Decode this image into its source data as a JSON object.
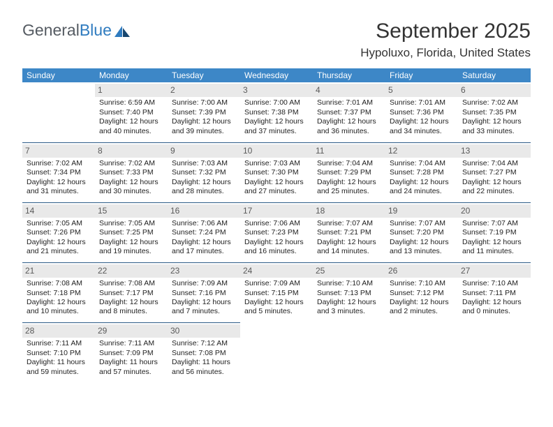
{
  "logo": {
    "text1": "General",
    "text2": "Blue"
  },
  "title": "September 2025",
  "location": "Hypoluxo, Florida, United States",
  "row_border_color": "#2b5a86",
  "header_bg": "#3d87c7",
  "daynum_bg": "#e9e9e9",
  "weekdays": [
    "Sunday",
    "Monday",
    "Tuesday",
    "Wednesday",
    "Thursday",
    "Friday",
    "Saturday"
  ],
  "weeks": [
    [
      null,
      {
        "d": "1",
        "r": "Sunrise: 6:59 AM",
        "s": "Sunset: 7:40 PM",
        "l1": "Daylight: 12 hours",
        "l2": "and 40 minutes."
      },
      {
        "d": "2",
        "r": "Sunrise: 7:00 AM",
        "s": "Sunset: 7:39 PM",
        "l1": "Daylight: 12 hours",
        "l2": "and 39 minutes."
      },
      {
        "d": "3",
        "r": "Sunrise: 7:00 AM",
        "s": "Sunset: 7:38 PM",
        "l1": "Daylight: 12 hours",
        "l2": "and 37 minutes."
      },
      {
        "d": "4",
        "r": "Sunrise: 7:01 AM",
        "s": "Sunset: 7:37 PM",
        "l1": "Daylight: 12 hours",
        "l2": "and 36 minutes."
      },
      {
        "d": "5",
        "r": "Sunrise: 7:01 AM",
        "s": "Sunset: 7:36 PM",
        "l1": "Daylight: 12 hours",
        "l2": "and 34 minutes."
      },
      {
        "d": "6",
        "r": "Sunrise: 7:02 AM",
        "s": "Sunset: 7:35 PM",
        "l1": "Daylight: 12 hours",
        "l2": "and 33 minutes."
      }
    ],
    [
      {
        "d": "7",
        "r": "Sunrise: 7:02 AM",
        "s": "Sunset: 7:34 PM",
        "l1": "Daylight: 12 hours",
        "l2": "and 31 minutes."
      },
      {
        "d": "8",
        "r": "Sunrise: 7:02 AM",
        "s": "Sunset: 7:33 PM",
        "l1": "Daylight: 12 hours",
        "l2": "and 30 minutes."
      },
      {
        "d": "9",
        "r": "Sunrise: 7:03 AM",
        "s": "Sunset: 7:32 PM",
        "l1": "Daylight: 12 hours",
        "l2": "and 28 minutes."
      },
      {
        "d": "10",
        "r": "Sunrise: 7:03 AM",
        "s": "Sunset: 7:30 PM",
        "l1": "Daylight: 12 hours",
        "l2": "and 27 minutes."
      },
      {
        "d": "11",
        "r": "Sunrise: 7:04 AM",
        "s": "Sunset: 7:29 PM",
        "l1": "Daylight: 12 hours",
        "l2": "and 25 minutes."
      },
      {
        "d": "12",
        "r": "Sunrise: 7:04 AM",
        "s": "Sunset: 7:28 PM",
        "l1": "Daylight: 12 hours",
        "l2": "and 24 minutes."
      },
      {
        "d": "13",
        "r": "Sunrise: 7:04 AM",
        "s": "Sunset: 7:27 PM",
        "l1": "Daylight: 12 hours",
        "l2": "and 22 minutes."
      }
    ],
    [
      {
        "d": "14",
        "r": "Sunrise: 7:05 AM",
        "s": "Sunset: 7:26 PM",
        "l1": "Daylight: 12 hours",
        "l2": "and 21 minutes."
      },
      {
        "d": "15",
        "r": "Sunrise: 7:05 AM",
        "s": "Sunset: 7:25 PM",
        "l1": "Daylight: 12 hours",
        "l2": "and 19 minutes."
      },
      {
        "d": "16",
        "r": "Sunrise: 7:06 AM",
        "s": "Sunset: 7:24 PM",
        "l1": "Daylight: 12 hours",
        "l2": "and 17 minutes."
      },
      {
        "d": "17",
        "r": "Sunrise: 7:06 AM",
        "s": "Sunset: 7:23 PM",
        "l1": "Daylight: 12 hours",
        "l2": "and 16 minutes."
      },
      {
        "d": "18",
        "r": "Sunrise: 7:07 AM",
        "s": "Sunset: 7:21 PM",
        "l1": "Daylight: 12 hours",
        "l2": "and 14 minutes."
      },
      {
        "d": "19",
        "r": "Sunrise: 7:07 AM",
        "s": "Sunset: 7:20 PM",
        "l1": "Daylight: 12 hours",
        "l2": "and 13 minutes."
      },
      {
        "d": "20",
        "r": "Sunrise: 7:07 AM",
        "s": "Sunset: 7:19 PM",
        "l1": "Daylight: 12 hours",
        "l2": "and 11 minutes."
      }
    ],
    [
      {
        "d": "21",
        "r": "Sunrise: 7:08 AM",
        "s": "Sunset: 7:18 PM",
        "l1": "Daylight: 12 hours",
        "l2": "and 10 minutes."
      },
      {
        "d": "22",
        "r": "Sunrise: 7:08 AM",
        "s": "Sunset: 7:17 PM",
        "l1": "Daylight: 12 hours",
        "l2": "and 8 minutes."
      },
      {
        "d": "23",
        "r": "Sunrise: 7:09 AM",
        "s": "Sunset: 7:16 PM",
        "l1": "Daylight: 12 hours",
        "l2": "and 7 minutes."
      },
      {
        "d": "24",
        "r": "Sunrise: 7:09 AM",
        "s": "Sunset: 7:15 PM",
        "l1": "Daylight: 12 hours",
        "l2": "and 5 minutes."
      },
      {
        "d": "25",
        "r": "Sunrise: 7:10 AM",
        "s": "Sunset: 7:13 PM",
        "l1": "Daylight: 12 hours",
        "l2": "and 3 minutes."
      },
      {
        "d": "26",
        "r": "Sunrise: 7:10 AM",
        "s": "Sunset: 7:12 PM",
        "l1": "Daylight: 12 hours",
        "l2": "and 2 minutes."
      },
      {
        "d": "27",
        "r": "Sunrise: 7:10 AM",
        "s": "Sunset: 7:11 PM",
        "l1": "Daylight: 12 hours",
        "l2": "and 0 minutes."
      }
    ],
    [
      {
        "d": "28",
        "r": "Sunrise: 7:11 AM",
        "s": "Sunset: 7:10 PM",
        "l1": "Daylight: 11 hours",
        "l2": "and 59 minutes."
      },
      {
        "d": "29",
        "r": "Sunrise: 7:11 AM",
        "s": "Sunset: 7:09 PM",
        "l1": "Daylight: 11 hours",
        "l2": "and 57 minutes."
      },
      {
        "d": "30",
        "r": "Sunrise: 7:12 AM",
        "s": "Sunset: 7:08 PM",
        "l1": "Daylight: 11 hours",
        "l2": "and 56 minutes."
      },
      null,
      null,
      null,
      null
    ]
  ]
}
